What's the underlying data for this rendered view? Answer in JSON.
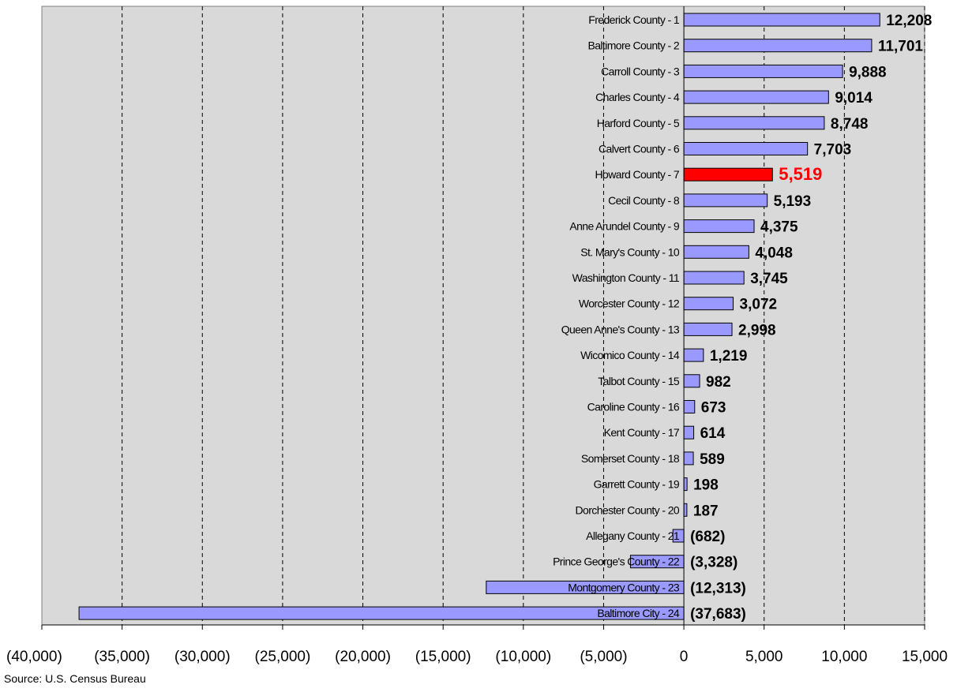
{
  "chart_data": {
    "type": "bar",
    "orientation": "horizontal",
    "categories": [
      "Frederick County - 1",
      "Baltimore County - 2",
      "Carroll County - 3",
      "Charles County - 4",
      "Harford County - 5",
      "Calvert County - 6",
      "Howard County - 7",
      "Cecil County - 8",
      "Anne Arundel County - 9",
      "St. Mary's County - 10",
      "Washington County - 11",
      "Worcester County - 12",
      "Queen Anne's County - 13",
      "Wicomico County - 14",
      "Talbot County - 15",
      "Caroline County - 16",
      "Kent County - 17",
      "Somerset County - 18",
      "Garrett County - 19",
      "Dorchester County - 20",
      "Allegany County - 21",
      "Prince George's County - 22",
      "Montgomery County - 23",
      "Baltimore City - 24"
    ],
    "values": [
      12208,
      11701,
      9888,
      9014,
      8748,
      7703,
      5519,
      5193,
      4375,
      4048,
      3745,
      3072,
      2998,
      1219,
      982,
      673,
      614,
      589,
      198,
      187,
      -682,
      -3328,
      -12313,
      -37683
    ],
    "value_labels": [
      "12,208",
      "11,701",
      "9,888",
      "9,014",
      "8,748",
      "7,703",
      "5,519",
      "5,193",
      "4,375",
      "4,048",
      "3,745",
      "3,072",
      "2,998",
      "1,219",
      "982",
      "673",
      "614",
      "589",
      "198",
      "187",
      "(682)",
      "(3,328)",
      "(12,313)",
      "(37,683)"
    ],
    "highlight_index": 6,
    "xlim": [
      -40000,
      15000
    ],
    "xticks": [
      -40000,
      -35000,
      -30000,
      -25000,
      -20000,
      -15000,
      -10000,
      -5000,
      0,
      5000,
      10000,
      15000
    ],
    "xtick_labels": [
      "(40,000)",
      "(35,000)",
      "(30,000)",
      "(25,000)",
      "(20,000)",
      "(15,000)",
      "(10,000)",
      "(5,000)",
      "0",
      "5,000",
      "10,000",
      "15,000"
    ],
    "grid": "vertical dashed",
    "title": "",
    "xlabel": "",
    "ylabel": "",
    "colors": {
      "bar": "#9999ff",
      "highlight_bar": "#ff0000",
      "highlight_label": "#ff0000",
      "plot_background": "#d9d9d9",
      "grid": "#000000"
    }
  },
  "source": "Source: U.S. Census Bureau"
}
